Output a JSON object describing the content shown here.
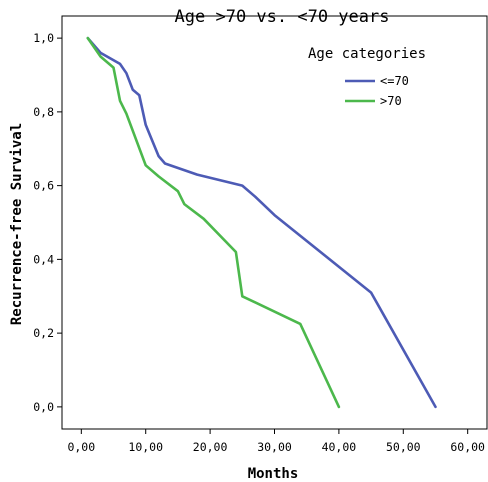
{
  "chart_data": {
    "type": "line",
    "title": "Age >70 vs. <70 years",
    "xlabel": "Months",
    "ylabel": "Recurrence-free Survival",
    "xlim": [
      -3,
      63
    ],
    "ylim": [
      -0.06,
      1.06
    ],
    "x_ticks": [
      "0,00",
      "10,00",
      "20,00",
      "30,00",
      "40,00",
      "50,00",
      "60,00"
    ],
    "x_tick_values": [
      0,
      10,
      20,
      30,
      40,
      50,
      60
    ],
    "y_ticks": [
      "0,0",
      "0,2",
      "0,4",
      "0,6",
      "0,8",
      "1,0"
    ],
    "y_tick_values": [
      0,
      0.2,
      0.4,
      0.6,
      0.8,
      1.0
    ],
    "grid": false,
    "legend": {
      "title": "Age categories",
      "position": "top-right"
    },
    "series": [
      {
        "name": "<=70",
        "color": "#4d5bb5",
        "x": [
          1,
          3,
          6,
          7,
          8,
          9,
          10,
          12,
          13,
          18,
          25,
          27,
          30,
          45,
          55
        ],
        "y": [
          1.0,
          0.96,
          0.93,
          0.905,
          0.86,
          0.845,
          0.765,
          0.68,
          0.66,
          0.63,
          0.6,
          0.57,
          0.52,
          0.31,
          0.0
        ]
      },
      {
        "name": ">70",
        "color": "#4cb84c",
        "x": [
          1,
          3,
          5,
          6,
          7,
          10,
          12,
          15,
          16,
          19,
          24,
          25,
          34,
          40
        ],
        "y": [
          1.0,
          0.95,
          0.92,
          0.83,
          0.795,
          0.655,
          0.625,
          0.585,
          0.55,
          0.51,
          0.42,
          0.3,
          0.225,
          0.0
        ]
      }
    ]
  }
}
